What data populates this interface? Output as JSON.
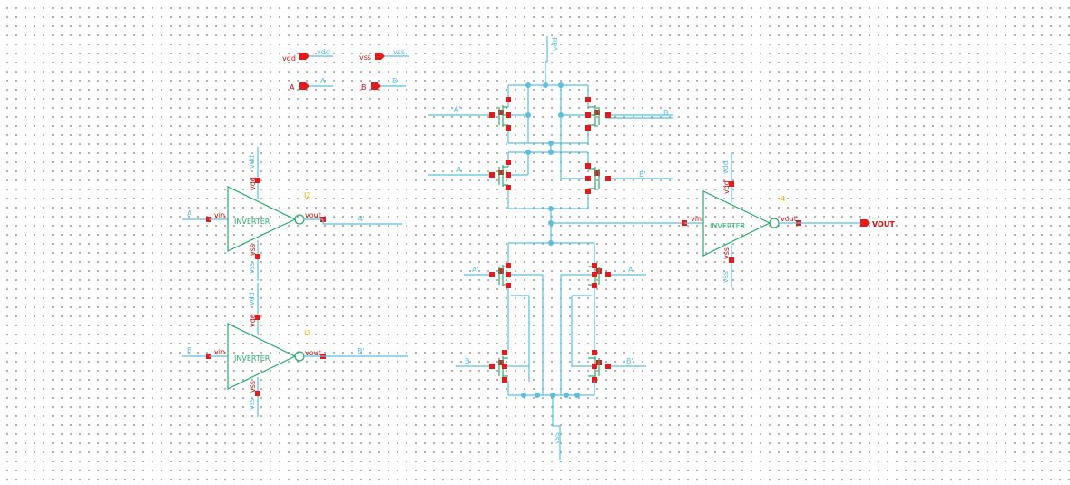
{
  "pins": {
    "vdd": {
      "label": "vdd",
      "net": "vdd"
    },
    "vss": {
      "label": "vss",
      "net": "vss"
    },
    "a": {
      "label": "A",
      "net": "A"
    },
    "b": {
      "label": "B",
      "net": "B"
    },
    "vout": {
      "label": "VOUT"
    }
  },
  "inverter_i2": {
    "name": "I2",
    "body": "INVERTER",
    "vin": "vin",
    "vout": "vout",
    "vdd": "vdd",
    "vss": "vss",
    "in_net": "A",
    "out_net": "A'",
    "top_net": "vdd",
    "bot_net": "vss"
  },
  "inverter_i3": {
    "name": "I3",
    "body": "INVERTER",
    "vin": "vin",
    "vout": "vout",
    "vdd": "vdd",
    "vss": "vss",
    "in_net": "B",
    "out_net": "B'",
    "top_net": "vdd",
    "bot_net": "vss"
  },
  "inverter_i4": {
    "name": "I4",
    "body": "INVERTER",
    "vin": "vin",
    "vout": "vout",
    "vdd": "vdd",
    "vss": "vss",
    "top_net": "vdd",
    "bot_net": "vss"
  },
  "nets": {
    "vdd_top": "vdd",
    "vss_bottom": "vss",
    "pmos_tl_gate": "A'",
    "pmos_tr_gate": "B",
    "pmos_ml_gate": "A",
    "pmos_mr_gate": "B'",
    "nmos_tl_gate": "A'",
    "nmos_tr_gate": "A",
    "nmos_bl_gate": "B",
    "nmos_br_gate": "B'"
  }
}
